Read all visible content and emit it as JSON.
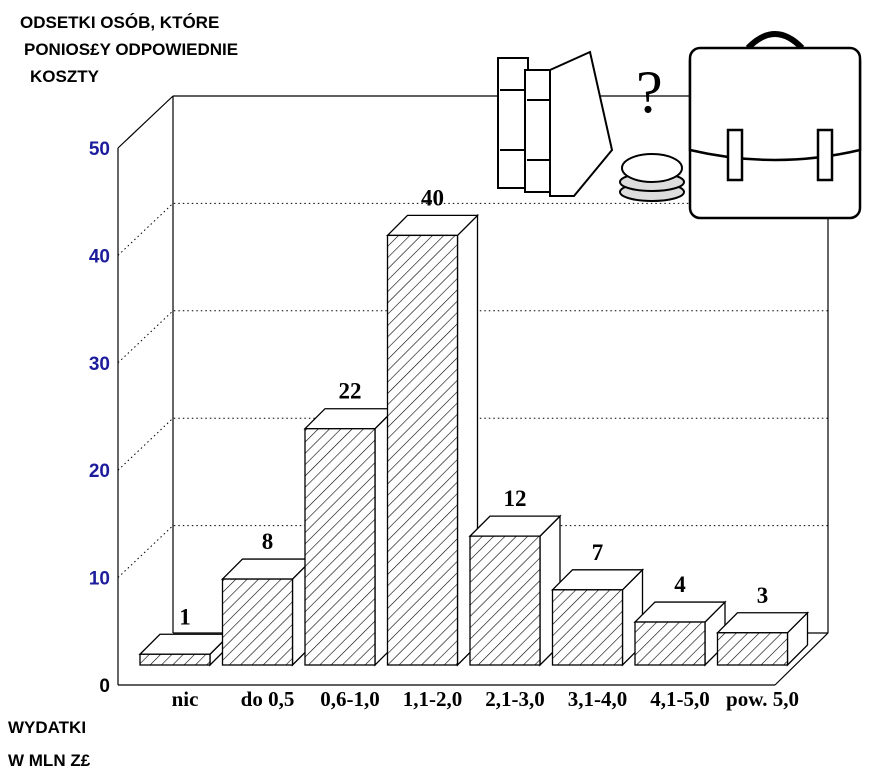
{
  "chart_data": {
    "type": "bar3d",
    "title_lines": [
      "ODSETKI OSÓB, KTÓRE",
      "PONIOS£Y ODPOWIEDNIE",
      "KOSZTY"
    ],
    "xlabel_lines": [
      "WYDATKI",
      "W MLN Z£"
    ],
    "categories": [
      "nic",
      "do 0,5",
      "0,6-1,0",
      "1,1-2,0",
      "2,1-3,0",
      "3,1-4,0",
      "4,1-5,0",
      "pow. 5,0"
    ],
    "values": [
      1,
      8,
      22,
      40,
      12,
      7,
      4,
      3
    ],
    "ylim": [
      0,
      50
    ],
    "yticks": [
      0,
      10,
      20,
      30,
      40,
      50
    ],
    "ytick_color": "#1c1c9c",
    "grid": true
  }
}
